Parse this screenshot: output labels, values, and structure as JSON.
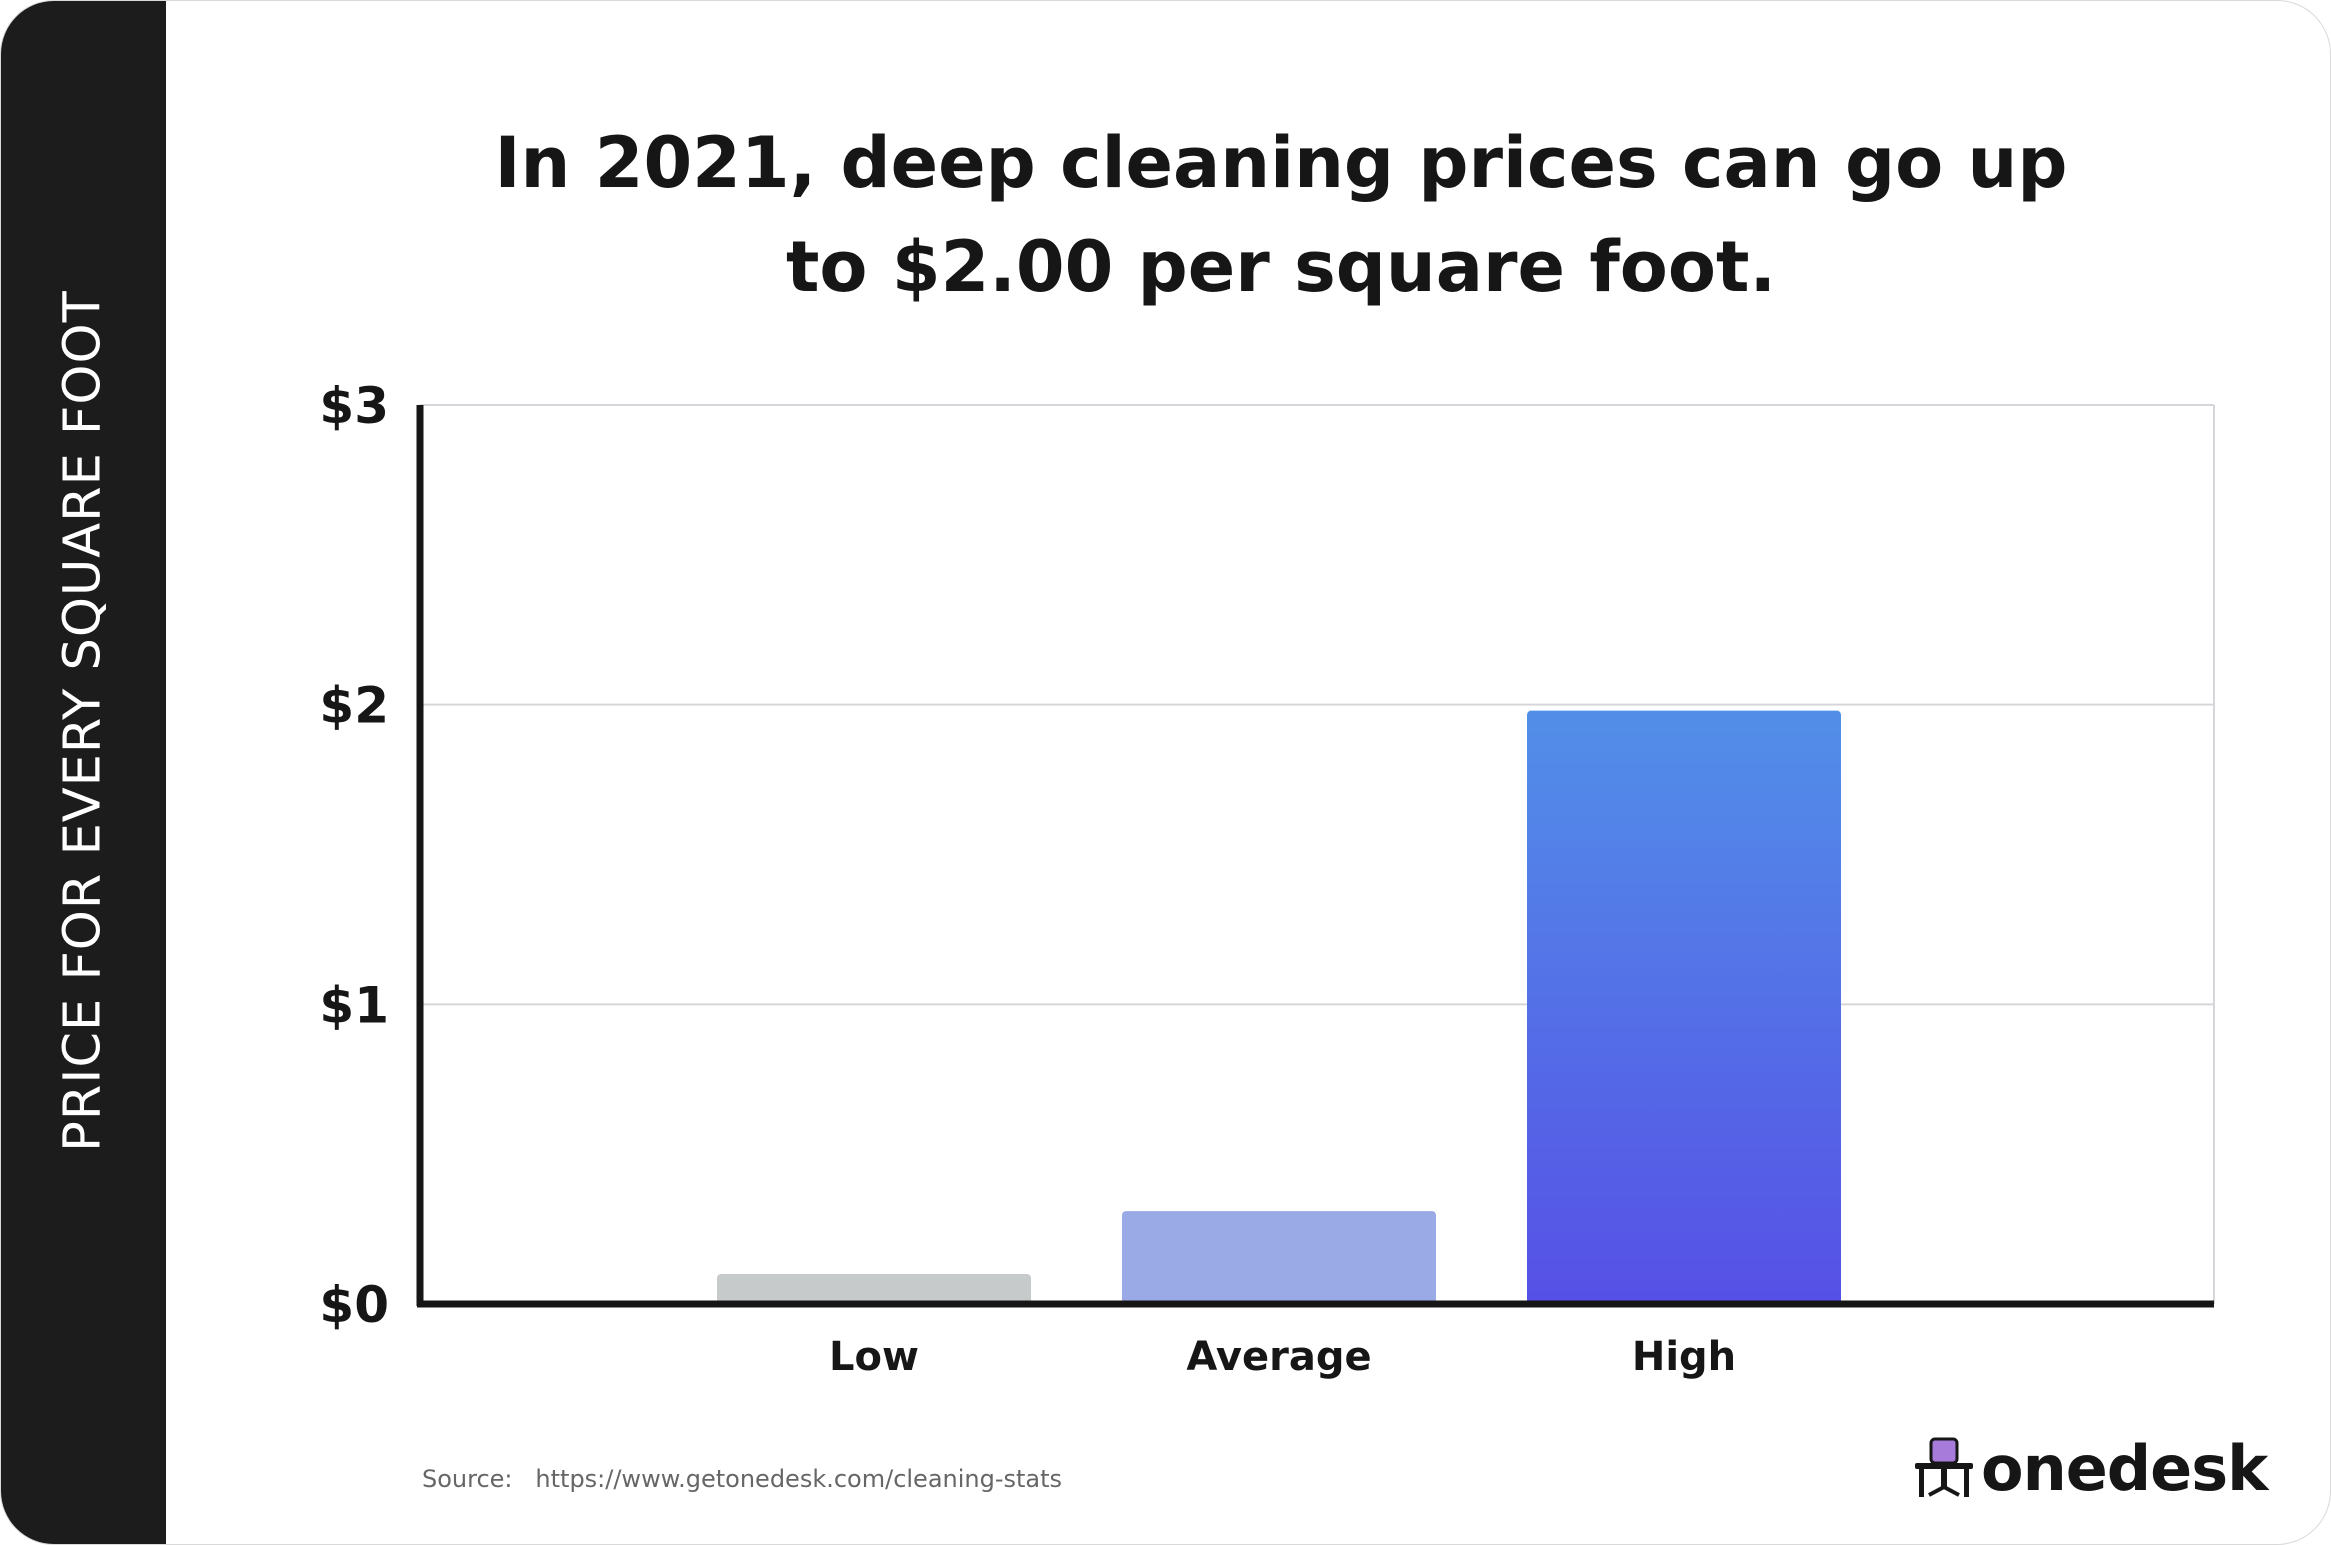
{
  "sidebar": {
    "label": "PRICE FOR EVERY SQUARE FOOT"
  },
  "title_lines": [
    "In 2021, deep cleaning prices can go up",
    "to $2.00 per square foot."
  ],
  "chart_data": {
    "type": "bar",
    "title": "In 2021, deep cleaning prices can go up to $2.00 per square foot.",
    "ylabel": "PRICE FOR EVERY SQUARE FOOT",
    "xlabel": "",
    "categories": [
      "Low",
      "Average",
      "High"
    ],
    "values": [
      0.1,
      0.31,
      1.98
    ],
    "ylim": [
      0,
      3
    ],
    "yticks": [
      {
        "value": 0,
        "label": "$0"
      },
      {
        "value": 1,
        "label": "$1"
      },
      {
        "value": 2,
        "label": "$2"
      },
      {
        "value": 3,
        "label": "$3"
      }
    ],
    "grid": true,
    "colors": {
      "Low": "#c7cacb",
      "Average": "#9aaae6",
      "High": [
        "#528fe8",
        "#5650e6"
      ]
    }
  },
  "source": {
    "label": "Source:",
    "url": "https://www.getonedesk.com/cleaning-stats"
  },
  "logo": {
    "text": "onedesk",
    "icon": "desk-chair-icon",
    "accent": "#a67bd9"
  }
}
